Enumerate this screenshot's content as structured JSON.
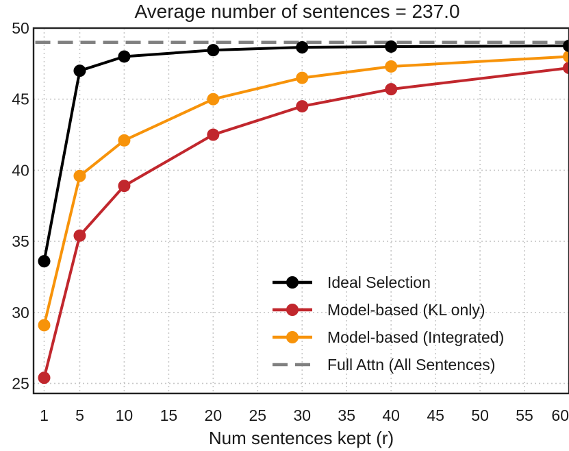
{
  "chart_data": {
    "type": "line",
    "title": "Average number of sentences = 237.0",
    "xlabel": "Num sentences kept (r)",
    "ylabel": "",
    "xlim": [
      0,
      60
    ],
    "ylim": [
      24.3,
      50.0
    ],
    "x_ticks": [
      1,
      5,
      10,
      15,
      20,
      25,
      30,
      35,
      40,
      45,
      50,
      55,
      60
    ],
    "y_ticks": [
      25,
      30,
      35,
      40,
      45,
      50
    ],
    "grid": true,
    "legend_position": "bottom-right",
    "series": [
      {
        "name": "Ideal Selection",
        "color": "#000000",
        "style": "solid",
        "marker": true,
        "x": [
          1,
          5,
          10,
          20,
          30,
          40,
          60
        ],
        "y": [
          33.6,
          47.0,
          48.0,
          48.45,
          48.65,
          48.7,
          48.75
        ]
      },
      {
        "name": "Model-based (KL only)",
        "color": "#c1272d",
        "style": "solid",
        "marker": true,
        "x": [
          1,
          5,
          10,
          20,
          30,
          40,
          60
        ],
        "y": [
          25.4,
          35.4,
          38.9,
          42.5,
          44.5,
          45.7,
          47.2
        ]
      },
      {
        "name": "Model-based (Integrated)",
        "color": "#f7930a",
        "style": "solid",
        "marker": true,
        "x": [
          1,
          5,
          10,
          20,
          30,
          40,
          60
        ],
        "y": [
          29.1,
          39.6,
          42.1,
          45.0,
          46.5,
          47.3,
          48.0
        ]
      },
      {
        "name": "Full Attn (All Sentences)",
        "color": "#808080",
        "style": "dashed",
        "marker": false,
        "x": [
          0,
          60
        ],
        "y": [
          49.0,
          49.0
        ]
      }
    ]
  }
}
